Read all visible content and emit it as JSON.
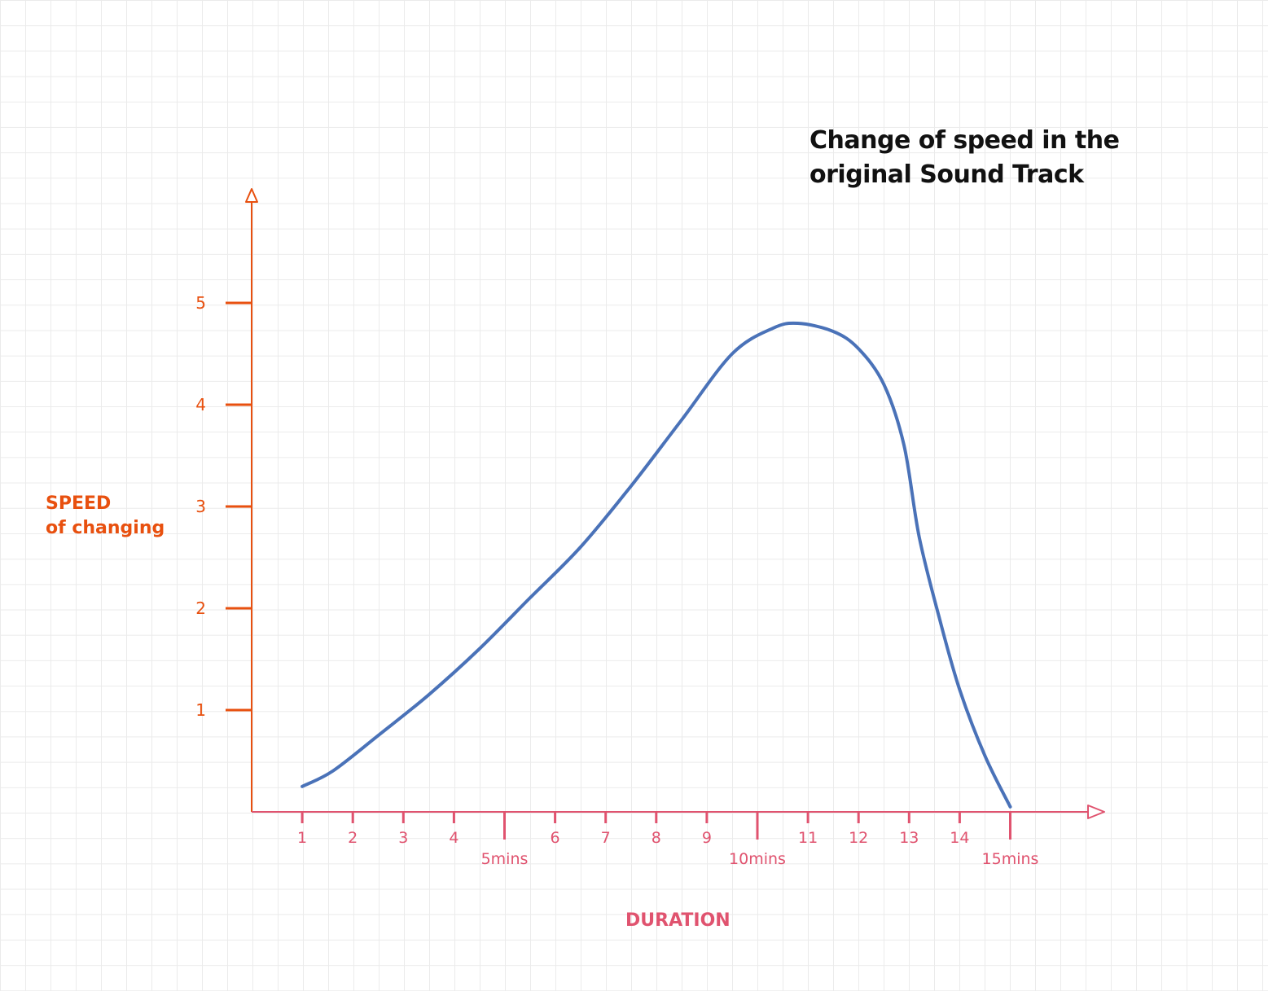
{
  "chart_data": {
    "type": "line",
    "title_lines": [
      "Change of speed in the",
      "original Sound Track"
    ],
    "ylabel_lines": [
      "SPEED",
      "of changing"
    ],
    "xlabel": "DURATION",
    "x_ticks": [
      1,
      2,
      3,
      4,
      5,
      6,
      7,
      8,
      9,
      10,
      11,
      12,
      13,
      14,
      15
    ],
    "x_tick_labels": [
      {
        "x": 1,
        "text": "1"
      },
      {
        "x": 2,
        "text": "2"
      },
      {
        "x": 3,
        "text": "3"
      },
      {
        "x": 4,
        "text": "4"
      },
      {
        "x": 6,
        "text": "6"
      },
      {
        "x": 7,
        "text": "7"
      },
      {
        "x": 8,
        "text": "8"
      },
      {
        "x": 9,
        "text": "9"
      },
      {
        "x": 11,
        "text": "11"
      },
      {
        "x": 12,
        "text": "12"
      },
      {
        "x": 13,
        "text": "13"
      },
      {
        "x": 14,
        "text": "14"
      }
    ],
    "x_major_labels": [
      {
        "x": 5,
        "text": "5mins"
      },
      {
        "x": 10,
        "text": "10mins"
      },
      {
        "x": 15,
        "text": "15mins"
      }
    ],
    "y_ticks": [
      1,
      2,
      3,
      4,
      5
    ],
    "y_tick_labels": [
      "1",
      "2",
      "3",
      "4",
      "5"
    ],
    "xlim": [
      0,
      16.6
    ],
    "ylim": [
      0,
      6.1
    ],
    "grid": true,
    "series": [
      {
        "x": [
          1.0,
          1.6,
          2.5,
          3.5,
          4.5,
          5.5,
          6.5,
          7.5,
          8.5,
          9.5,
          10.3,
          10.8,
          11.5,
          12.0,
          12.5,
          12.9,
          13.2,
          13.6,
          14.0,
          14.5,
          15.0
        ],
        "y": [
          0.25,
          0.4,
          0.75,
          1.15,
          1.6,
          2.1,
          2.6,
          3.2,
          3.85,
          4.5,
          4.75,
          4.8,
          4.72,
          4.55,
          4.2,
          3.6,
          2.7,
          1.9,
          1.2,
          0.55,
          0.05
        ]
      }
    ],
    "colors": {
      "y_axis": "#e8500f",
      "x_axis": "#e0536f",
      "line": "#4a72b8",
      "grid": "#ebebeb"
    }
  }
}
